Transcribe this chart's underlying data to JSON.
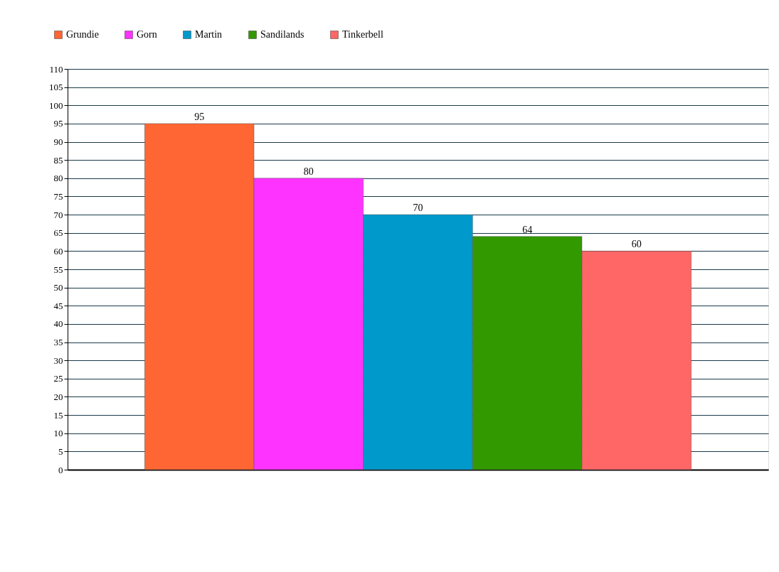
{
  "chart_data": {
    "type": "bar",
    "categories": [
      null
    ],
    "series": [
      {
        "name": "Grundie",
        "color": "#ff6633",
        "values": [
          95
        ]
      },
      {
        "name": "Gorn",
        "color": "#ff33ff",
        "values": [
          80
        ]
      },
      {
        "name": "Martin",
        "color": "#0099cc",
        "values": [
          70
        ]
      },
      {
        "name": "Sandilands",
        "color": "#339900",
        "values": [
          64
        ]
      },
      {
        "name": "Tinkerbell",
        "color": "#ff6666",
        "values": [
          60
        ]
      }
    ],
    "ylim": [
      0,
      110
    ],
    "yticks": [
      0,
      5,
      10,
      15,
      20,
      25,
      30,
      35,
      40,
      45,
      50,
      55,
      60,
      65,
      70,
      75,
      80,
      85,
      90,
      95,
      100,
      105,
      110
    ],
    "grid": "y",
    "legend": "top left",
    "data_labels": true
  }
}
